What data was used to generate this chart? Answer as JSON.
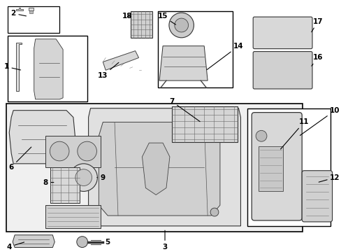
{
  "background_color": "#ffffff",
  "diagram_bg": "#f0f0f0",
  "border_color": "#000000",
  "text_color": "#000000"
}
